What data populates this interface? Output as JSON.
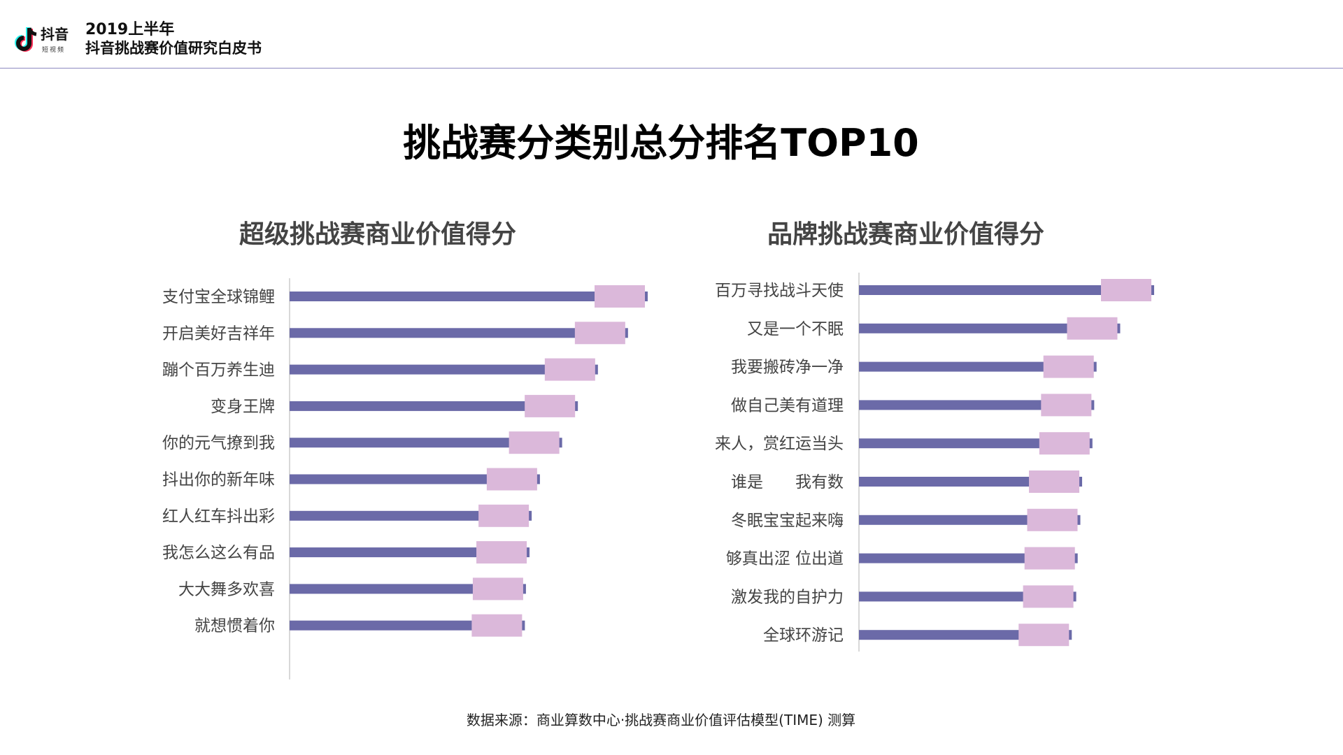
{
  "header": {
    "brand": "抖音",
    "brand_sub": "短视频",
    "report_year": "2019上半年",
    "report_name": "抖音挑战赛价值研究白皮书"
  },
  "page_title": "挑战赛分类别总分排名TOP10",
  "footer": "数据来源：商业算数中心·挑战赛商业价值评估模型(TIME) 测算",
  "colors": {
    "bar": "#6b6aa8",
    "highlight": "#dbb8da",
    "axis": "#cccccc",
    "divider": "#8c88c0"
  },
  "chart_data": [
    {
      "type": "bar",
      "orientation": "horizontal",
      "title": "超级挑战赛商业价值得分",
      "categories": [
        "支付宝全球锦鲤",
        "开启美好吉祥年",
        "蹦个百万养生迪",
        "变身王牌",
        "你的元气撩到我",
        "抖出你的新年味",
        "红人红车抖出彩",
        "我怎么这么有品",
        "大大舞多欢喜",
        "就想惯着你"
      ],
      "values": [
        100,
        94.5,
        86.1,
        80.5,
        76.1,
        69.9,
        67.6,
        67.0,
        66.0,
        65.7
      ]
    },
    {
      "type": "bar",
      "orientation": "horizontal",
      "title": "品牌挑战赛商业价值得分",
      "categories": [
        "百万寻找战斗天使",
        "又是一个不眠",
        "我要搬砖净一净",
        "做自己美有道理",
        "来人，赏红运当头",
        "谁是　　我有数",
        "冬眠宝宝起来嗨",
        "够真出涩 位出道",
        "激发我的自护力",
        "全球环游记"
      ],
      "values": [
        100,
        88.5,
        80.5,
        79.7,
        79.1,
        75.6,
        75.0,
        74.1,
        73.6,
        72.1
      ]
    }
  ]
}
